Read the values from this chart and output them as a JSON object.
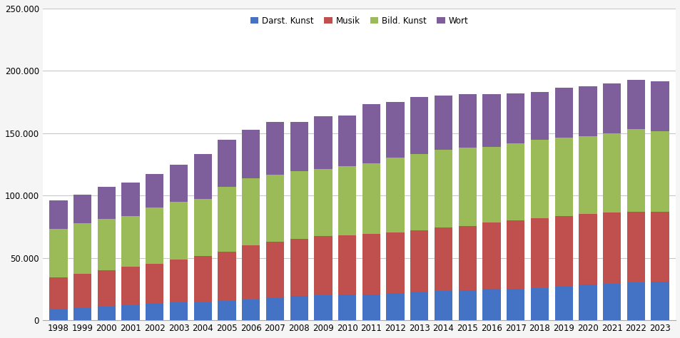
{
  "years": [
    1998,
    1999,
    2000,
    2001,
    2002,
    2003,
    2004,
    2005,
    2006,
    2007,
    2008,
    2009,
    2010,
    2011,
    2012,
    2013,
    2014,
    2015,
    2016,
    2017,
    2018,
    2019,
    2020,
    2021,
    2022,
    2023
  ],
  "darst_kunst": [
    8917,
    10003,
    10975,
    12041,
    13437,
    14173,
    14500,
    15517,
    16877,
    18108,
    19478,
    20227,
    20488,
    20961,
    21601,
    22399,
    23321,
    24191,
    25108,
    25512,
    25975,
    27051,
    28424,
    29386,
    30576,
    31082
  ],
  "musik": [
    25650,
    27350,
    29200,
    30800,
    31800,
    34500,
    37000,
    39500,
    43200,
    44800,
    45900,
    47200,
    47900,
    48200,
    49000,
    50000,
    51200,
    51500,
    53200,
    54500,
    55800,
    56500,
    57000,
    56800,
    56500,
    55800
  ],
  "bild_kunst": [
    38500,
    40500,
    41000,
    41000,
    45000,
    46500,
    46000,
    52000,
    54000,
    54000,
    54000,
    54000,
    55000,
    57000,
    60000,
    61000,
    62000,
    62500,
    61000,
    62000,
    63000,
    63000,
    62000,
    64000,
    66000,
    65000
  ],
  "wort": [
    23000,
    23000,
    26000,
    26500,
    27000,
    29500,
    36000,
    37500,
    38500,
    42000,
    39500,
    42000,
    41000,
    47000,
    44500,
    45500,
    43500,
    43000,
    42000,
    40000,
    38500,
    40000,
    40000,
    40000,
    40000,
    40000
  ],
  "colors": {
    "darst_kunst": "#4472C4",
    "musik": "#C0504D",
    "bild_kunst": "#9BBB59",
    "wort": "#7F5F9B"
  },
  "legend_labels": [
    "Darst. Kunst",
    "Musik",
    "Bild. Kunst",
    "Wort"
  ],
  "ylim": [
    0,
    250000
  ],
  "yticks": [
    0,
    50000,
    100000,
    150000,
    200000,
    250000
  ],
  "background_color": "#F5F5F5",
  "plot_background": "#FFFFFF",
  "grid_color": "#C8C8C8",
  "bar_width": 0.75,
  "font_size": 8.5
}
